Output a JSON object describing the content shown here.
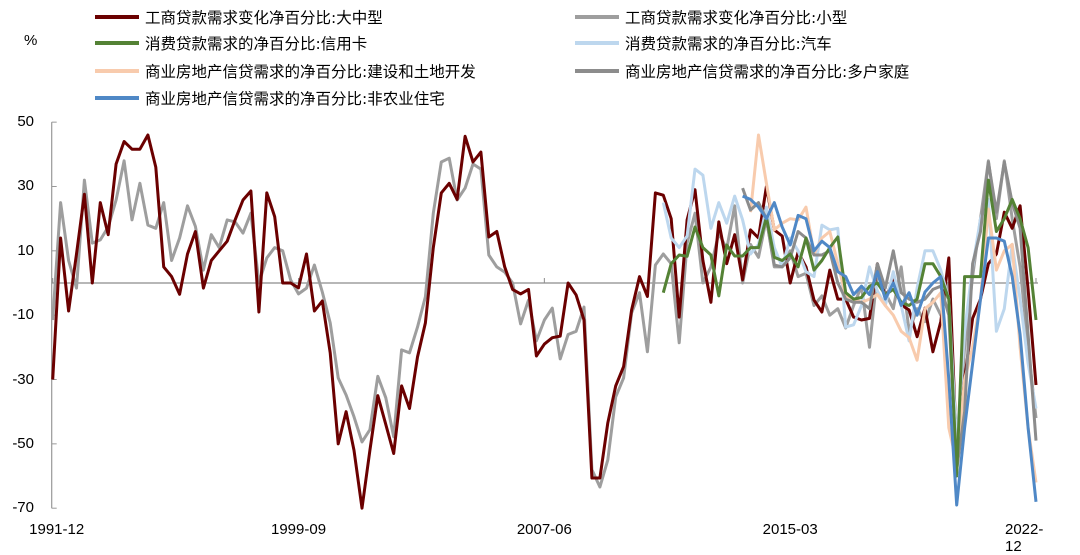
{
  "chart_data": {
    "type": "line",
    "ylabel": "%",
    "ylim": [
      -70,
      50
    ],
    "yticks": [
      50,
      30,
      10,
      -10,
      -30,
      -50,
      -70
    ],
    "x_start": "1991-12",
    "x_end": "2022-12",
    "frequency": "quarterly",
    "xtick_labels": [
      "1991-12",
      "1999-09",
      "2007-06",
      "2015-03",
      "2022-12"
    ],
    "zero_line": true,
    "grid": false,
    "legend_position": "top",
    "series": [
      {
        "name": "工商贷款需求变化净百分比:小型",
        "color": "#9E9E9E",
        "start": "1991-12",
        "values": [
          -11.5,
          25,
          7,
          -1.6,
          32,
          12.4,
          13.4,
          17.4,
          25.8,
          38,
          19.6,
          31,
          18,
          17,
          25,
          7,
          14,
          24,
          17.6,
          4,
          15,
          11,
          19.6,
          19,
          15.5,
          21.7,
          0,
          7.8,
          11,
          10,
          1,
          -3.4,
          -1.6,
          5.6,
          -2.8,
          -12.4,
          -29.5,
          -34.8,
          -41.6,
          -49.4,
          -45.6,
          -29,
          -35.7,
          -47.8,
          -20.8,
          -21.7,
          -13.7,
          -4.3,
          21.7,
          37.6,
          38.8,
          25.8,
          29.5,
          37,
          35.4,
          8.7,
          5,
          3.4,
          0,
          -12.7,
          -5.3,
          -18,
          -11.5,
          -7.8,
          -23.6,
          -16,
          -15,
          -7.5,
          -58,
          -63.4,
          -55,
          -35.4,
          -29.5,
          -9.3,
          -3,
          -21.4,
          5.6,
          9,
          6,
          -18.6,
          12.4,
          21.7,
          0,
          5,
          15.5,
          10.6,
          24,
          0,
          12,
          8,
          20,
          5,
          5,
          10,
          2,
          3,
          -7,
          -4,
          -10,
          -8,
          -14,
          -7,
          -1,
          -20,
          3,
          -3,
          -8,
          5,
          -15,
          -8,
          -12,
          -5,
          -10,
          0,
          -55,
          -20,
          2,
          20,
          38,
          20,
          38,
          20,
          5,
          -20,
          -42
        ]
      },
      {
        "name": "工商贷款需求变化净百分比:大中型",
        "color": "#6B0000",
        "start": "1991-12",
        "values": [
          -30,
          14,
          -8.7,
          9,
          27.6,
          0,
          25,
          15,
          37,
          44,
          41.6,
          41.6,
          46,
          36,
          5,
          2,
          -3.5,
          9,
          16,
          -1.6,
          7,
          10,
          13,
          19.6,
          25.8,
          28.6,
          -9,
          28,
          20.6,
          0,
          0,
          -1.5,
          9,
          -8.7,
          -5.6,
          -21.7,
          -50,
          -40,
          -52,
          -70,
          -52,
          -35,
          -44,
          -53,
          -32,
          -39,
          -23,
          -12.4,
          11,
          28,
          31,
          26,
          45.6,
          37.6,
          40.7,
          14.3,
          16,
          5,
          -2,
          -3.4,
          -2,
          -22.7,
          -19,
          -17,
          -16.5,
          0,
          -3.7,
          -11.5,
          -60.6,
          -60.6,
          -43.5,
          -32,
          -26,
          -8.4,
          2,
          -4.2,
          28,
          27.3,
          20,
          -10.6,
          19.6,
          29,
          7,
          -6,
          19,
          6,
          15,
          1,
          16.5,
          14,
          30,
          16.5,
          14.6,
          0,
          9.6,
          5,
          -5.3,
          -9,
          4,
          -5,
          -5,
          -10.6,
          -11.5,
          -11,
          6,
          -4.7,
          1,
          -6.8,
          -8.4,
          -16.7,
          -7.8,
          -21.4,
          -12,
          7.8,
          -53,
          -30,
          -11,
          -5,
          6,
          9,
          22,
          17,
          24,
          -2,
          -31.7
        ]
      },
      {
        "name": "消费贷款需求的净百分比:汽车",
        "color": "#BDD7EE",
        "start": "2011-03",
        "values": [
          25,
          14,
          11,
          14.6,
          35.4,
          33.5,
          17,
          25,
          18.6,
          27,
          19.6,
          9,
          12,
          23.6,
          11,
          5,
          14,
          10,
          3.5,
          2,
          18,
          16.5,
          17,
          -13.7,
          -13,
          -7,
          5,
          -2.5,
          -7,
          3.5,
          -7,
          -18,
          -1.6,
          10,
          10,
          4,
          -5,
          -50,
          -15,
          5,
          20,
          26,
          -15,
          -8,
          12,
          -5,
          -25,
          -39
        ]
      },
      {
        "name": "商业房地产信贷需求的净百分比:建设和土地开发",
        "color": "#F8CBAD",
        "start": "2013-12",
        "values": [
          22,
          46,
          31,
          16.5,
          18.6,
          20,
          19.6,
          23.6,
          9,
          14,
          16,
          6,
          -4,
          -5,
          -6,
          -5,
          -3.6,
          -7,
          -10,
          -15,
          -17,
          -24,
          -8,
          -6,
          -3,
          -45,
          -56,
          -30,
          -20,
          -5,
          23,
          4,
          10,
          12,
          -20,
          -45,
          -62
        ]
      },
      {
        "name": "商业房地产信贷需求的净百分比:多户家庭",
        "color": "#8C8C8C",
        "start": "2013-09",
        "values": [
          29.5,
          22.7,
          25,
          20,
          5.6,
          5,
          7.8,
          16,
          14,
          8.7,
          8.7,
          10,
          0,
          -5,
          -6,
          -6,
          -8,
          6,
          -1.6,
          10,
          -3,
          -5,
          -6,
          -5,
          -2,
          -1,
          -10,
          -58,
          -40,
          6,
          16,
          37.6,
          22,
          37.6,
          25,
          17,
          -16,
          -49
        ]
      },
      {
        "name": "消费贷款需求的净百分比:信用卡",
        "color": "#548235",
        "start": "2011-03",
        "values": [
          -3,
          6,
          8.7,
          8.3,
          17.4,
          11,
          8.7,
          -4,
          11.8,
          8.4,
          8.4,
          11,
          11,
          20.5,
          8,
          7,
          9,
          5,
          14,
          4,
          7,
          11,
          14.3,
          -3,
          -5,
          -4.5,
          -1,
          0,
          -3.6,
          -2,
          -6,
          -7,
          -5,
          6,
          6,
          2,
          -5,
          -60,
          2,
          2,
          2,
          32,
          16,
          20,
          26,
          20,
          11,
          -11.5
        ]
      },
      {
        "name": "商业房地产信贷需求的净百分比:非农业住宅",
        "color": "#4F88C6",
        "start": "2013-09",
        "values": [
          27,
          26,
          23.6,
          20,
          25,
          17.4,
          11.8,
          21,
          20,
          10,
          13,
          11,
          3.5,
          2,
          -3.6,
          -1,
          -3.6,
          3.5,
          -5,
          0,
          -7,
          -3,
          -10,
          -2.8,
          0,
          2,
          -30,
          -69,
          -45,
          -25,
          -5,
          14,
          14,
          13,
          2,
          -16,
          -45,
          -68
        ]
      }
    ],
    "legend": [
      {
        "label": "工商贷款需求变化净百分比:大中型",
        "color": "#6B0000"
      },
      {
        "label": "工商贷款需求变化净百分比:小型",
        "color": "#9E9E9E"
      },
      {
        "label": "消费贷款需求的净百分比:信用卡",
        "color": "#548235"
      },
      {
        "label": "消费贷款需求的净百分比:汽车",
        "color": "#BDD7EE"
      },
      {
        "label": "商业房地产信贷需求的净百分比:建设和土地开发",
        "color": "#F8CBAD"
      },
      {
        "label": "商业房地产信贷需求的净百分比:多户家庭",
        "color": "#8C8C8C"
      },
      {
        "label": "商业房地产信贷需求的净百分比:非农业住宅",
        "color": "#4F88C6"
      }
    ]
  }
}
